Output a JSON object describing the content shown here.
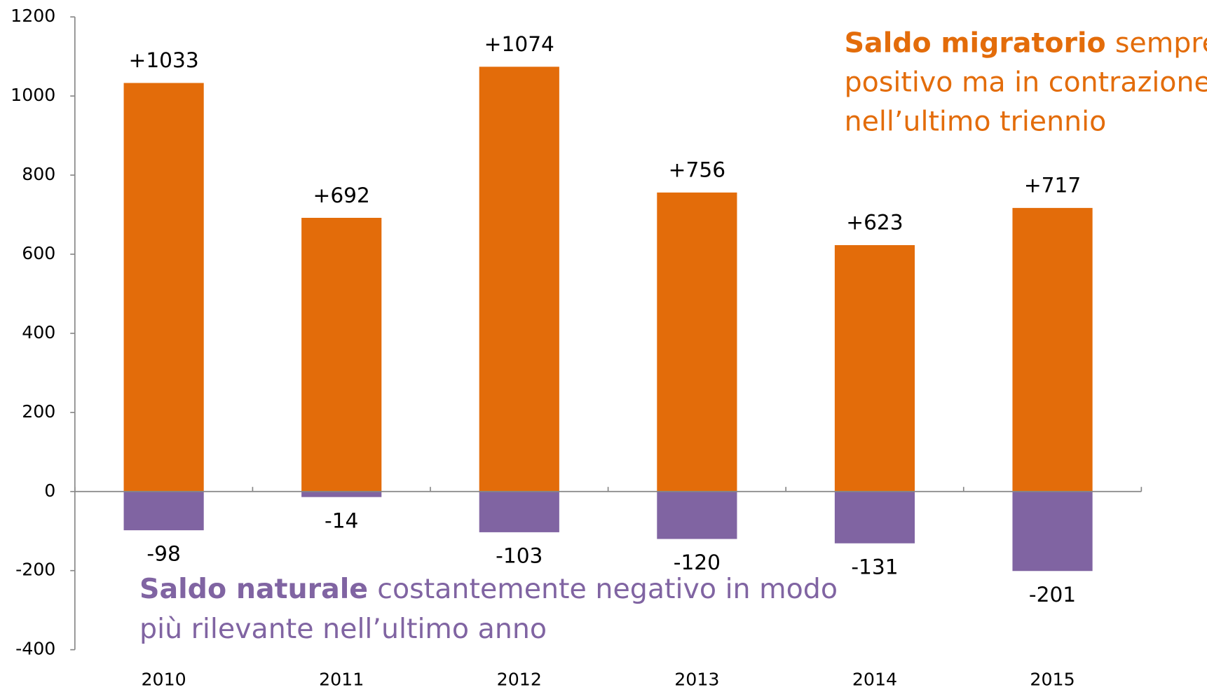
{
  "chart_data": {
    "type": "bar",
    "categories": [
      "2010",
      "2011",
      "2012",
      "2013",
      "2014",
      "2015"
    ],
    "series": [
      {
        "name": "Saldo migratorio",
        "color": "#e36c0a",
        "values": [
          1033,
          692,
          1074,
          756,
          623,
          717
        ],
        "value_labels": [
          "+1033",
          "+692",
          "+1074",
          "+756",
          "+623",
          "+717"
        ]
      },
      {
        "name": "Saldo naturale",
        "color": "#8064a2",
        "values": [
          -98,
          -14,
          -103,
          -120,
          -131,
          -201
        ]
      }
    ],
    "ylim": [
      -400,
      1200
    ],
    "yticks": [
      -400,
      -200,
      0,
      200,
      400,
      600,
      800,
      1000,
      1200
    ],
    "annotations": [
      {
        "series": 0,
        "lines": [
          "sempre",
          "positivo ma in contrazione",
          "nell’ultimo triennio"
        ]
      },
      {
        "series": 1,
        "lines": [
          "costantemente negativo in modo",
          "più rilevante nell’ultimo anno"
        ]
      }
    ]
  }
}
